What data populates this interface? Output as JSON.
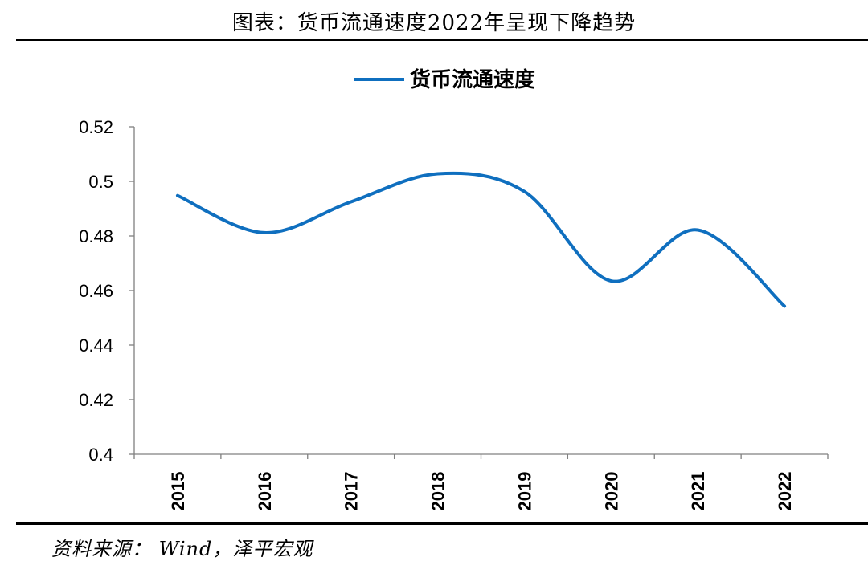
{
  "header": {
    "title": "图表：货币流通速度2022年呈现下降趋势"
  },
  "footer": {
    "source": "资料来源： Wind，泽平宏观"
  },
  "colors": {
    "series": "#0F6FBF",
    "axis": "#808080",
    "text": "#000000"
  },
  "chart_data": {
    "type": "line",
    "title": "",
    "xlabel": "",
    "ylabel": "",
    "categories": [
      "2015",
      "2016",
      "2017",
      "2018",
      "2019",
      "2020",
      "2021",
      "2022"
    ],
    "series": [
      {
        "name": "货币流通速度",
        "values": [
          0.4948,
          0.4812,
          0.4925,
          0.5028,
          0.4963,
          0.4635,
          0.4822,
          0.4543
        ]
      }
    ],
    "ylim": [
      0.4,
      0.52
    ],
    "yticks": [
      "0.4",
      "0.42",
      "0.44",
      "0.46",
      "0.48",
      "0.5",
      "0.52"
    ],
    "grid": false,
    "legend_position": "top-center",
    "smooth": true
  }
}
